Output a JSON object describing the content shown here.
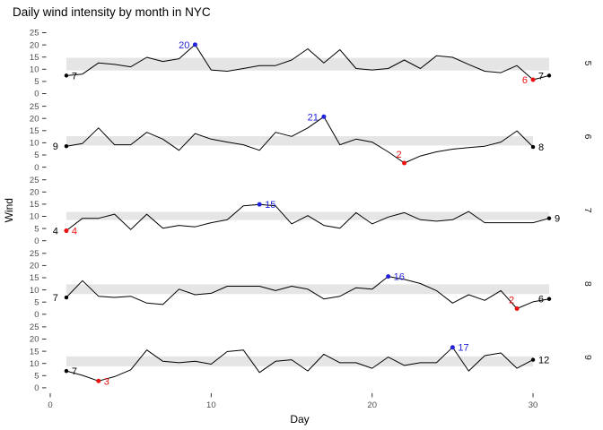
{
  "title": "Daily wind intensity by month in NYC",
  "axes": {
    "x_label": "Day",
    "y_label": "Wind",
    "x_ticks": [
      "0",
      "10",
      "20",
      "30"
    ],
    "x_tick_values": [
      0,
      10,
      20,
      30
    ],
    "y_ticks": [
      "0",
      "5",
      "10",
      "15",
      "20",
      "25"
    ],
    "y_tick_values": [
      0,
      5,
      10,
      15,
      20,
      25
    ]
  },
  "colors": {
    "line": "#000000",
    "band": "#E5E5E5",
    "max_blue": "#2222DD",
    "min_red": "#EE1111",
    "endpoint_black": "#000000",
    "axis_text": "#4D4D4D",
    "strip_text": "#1A1A1A",
    "title_text": "#000000",
    "tick_mark": "#333333"
  },
  "chart_data": {
    "type": "line",
    "title": "Daily wind intensity by month in NYC",
    "xlabel": "Day",
    "ylabel": "Wind",
    "xlim": [
      0,
      31
    ],
    "ylim": [
      0,
      25
    ],
    "grid": false,
    "legend": "none",
    "facet_axis": "right",
    "facets": [
      {
        "month": 5,
        "label": "5",
        "band_low": 9.5,
        "band_high": 14.7,
        "values": [
          7.4,
          8.0,
          12.6,
          12.0,
          11.0,
          14.9,
          13.2,
          14.3,
          20.1,
          9.7,
          9.2,
          10.3,
          11.5,
          11.5,
          13.8,
          18.4,
          12.6,
          18.0,
          10.3,
          9.7,
          10.3,
          13.8,
          10.3,
          15.5,
          14.9,
          12.0,
          9.2,
          8.6,
          11.5,
          5.7,
          7.4
        ],
        "annotations": [
          {
            "kind": "start",
            "day": 1,
            "value": 7.4,
            "label": "7",
            "side": "right"
          },
          {
            "kind": "max",
            "day": 9,
            "value": 20.1,
            "label": "20",
            "side": "left"
          },
          {
            "kind": "min",
            "day": 30,
            "value": 5.7,
            "label": "6",
            "side": "left"
          },
          {
            "kind": "end",
            "day": 31,
            "value": 7.4,
            "label": "7",
            "side": "left"
          }
        ]
      },
      {
        "month": 6,
        "label": "6",
        "band_low": 8.9,
        "band_high": 12.7,
        "values": [
          8.6,
          9.7,
          16.1,
          9.2,
          9.2,
          14.3,
          11.5,
          6.9,
          13.8,
          11.5,
          10.3,
          9.2,
          6.9,
          14.3,
          12.6,
          16.1,
          20.7,
          9.2,
          11.5,
          10.3,
          6.3,
          1.7,
          4.6,
          6.3,
          7.4,
          8.0,
          8.6,
          10.3,
          14.9,
          8.3
        ],
        "annotations": [
          {
            "kind": "start",
            "day": 1,
            "value": 8.6,
            "label": "9",
            "side": "left"
          },
          {
            "kind": "max",
            "day": 17,
            "value": 20.7,
            "label": "21",
            "side": "left"
          },
          {
            "kind": "min",
            "day": 22,
            "value": 1.7,
            "label": "2",
            "side": "above"
          },
          {
            "kind": "end",
            "day": 30,
            "value": 8.3,
            "label": "8",
            "side": "right"
          }
        ]
      },
      {
        "month": 7,
        "label": "7",
        "band_low": 8.5,
        "band_high": 11.8,
        "values": [
          4.1,
          9.2,
          9.2,
          10.9,
          4.6,
          10.9,
          5.1,
          6.3,
          5.7,
          7.4,
          8.6,
          14.3,
          14.9,
          14.3,
          6.9,
          10.3,
          6.3,
          5.1,
          11.5,
          6.9,
          9.7,
          11.5,
          8.6,
          8.0,
          8.6,
          12.0,
          7.4,
          7.4,
          7.4,
          7.4,
          9.2
        ],
        "annotations": [
          {
            "kind": "start",
            "day": 1,
            "value": 4.1,
            "label": "4",
            "side": "left"
          },
          {
            "kind": "min",
            "day": 1,
            "value": 4.1,
            "label": "4",
            "side": "right"
          },
          {
            "kind": "max",
            "day": 13,
            "value": 14.9,
            "label": "15",
            "side": "right"
          },
          {
            "kind": "end",
            "day": 31,
            "value": 9.2,
            "label": "9",
            "side": "right"
          }
        ]
      },
      {
        "month": 8,
        "label": "8",
        "band_low": 8.3,
        "band_high": 12.3,
        "values": [
          6.9,
          13.8,
          7.4,
          6.9,
          7.4,
          4.6,
          4.0,
          10.3,
          8.0,
          8.6,
          11.5,
          11.5,
          11.5,
          9.7,
          11.5,
          10.3,
          6.3,
          7.4,
          10.9,
          10.3,
          15.5,
          14.3,
          12.6,
          9.7,
          4.6,
          8.0,
          5.7,
          9.7,
          2.3,
          5.1,
          6.3
        ],
        "annotations": [
          {
            "kind": "start",
            "day": 1,
            "value": 6.9,
            "label": "7",
            "side": "left"
          },
          {
            "kind": "max",
            "day": 21,
            "value": 15.5,
            "label": "16",
            "side": "right"
          },
          {
            "kind": "min",
            "day": 29,
            "value": 2.3,
            "label": "2",
            "side": "above"
          },
          {
            "kind": "end",
            "day": 31,
            "value": 6.3,
            "label": "6",
            "side": "left"
          }
        ]
      },
      {
        "month": 9,
        "label": "9",
        "band_low": 8.8,
        "band_high": 12.9,
        "values": [
          6.9,
          5.1,
          2.8,
          4.6,
          7.4,
          15.5,
          10.9,
          10.3,
          10.9,
          9.7,
          14.9,
          15.5,
          6.3,
          10.9,
          11.5,
          6.9,
          13.8,
          10.3,
          10.3,
          8.0,
          12.6,
          9.2,
          10.3,
          10.3,
          16.6,
          6.9,
          13.2,
          14.3,
          8.0,
          11.5
        ],
        "annotations": [
          {
            "kind": "start",
            "day": 1,
            "value": 6.9,
            "label": "7",
            "side": "right"
          },
          {
            "kind": "min",
            "day": 3,
            "value": 2.8,
            "label": "3",
            "side": "right"
          },
          {
            "kind": "max",
            "day": 25,
            "value": 16.6,
            "label": "17",
            "side": "right"
          },
          {
            "kind": "end",
            "day": 30,
            "value": 11.5,
            "label": "12",
            "side": "right"
          }
        ]
      }
    ]
  }
}
